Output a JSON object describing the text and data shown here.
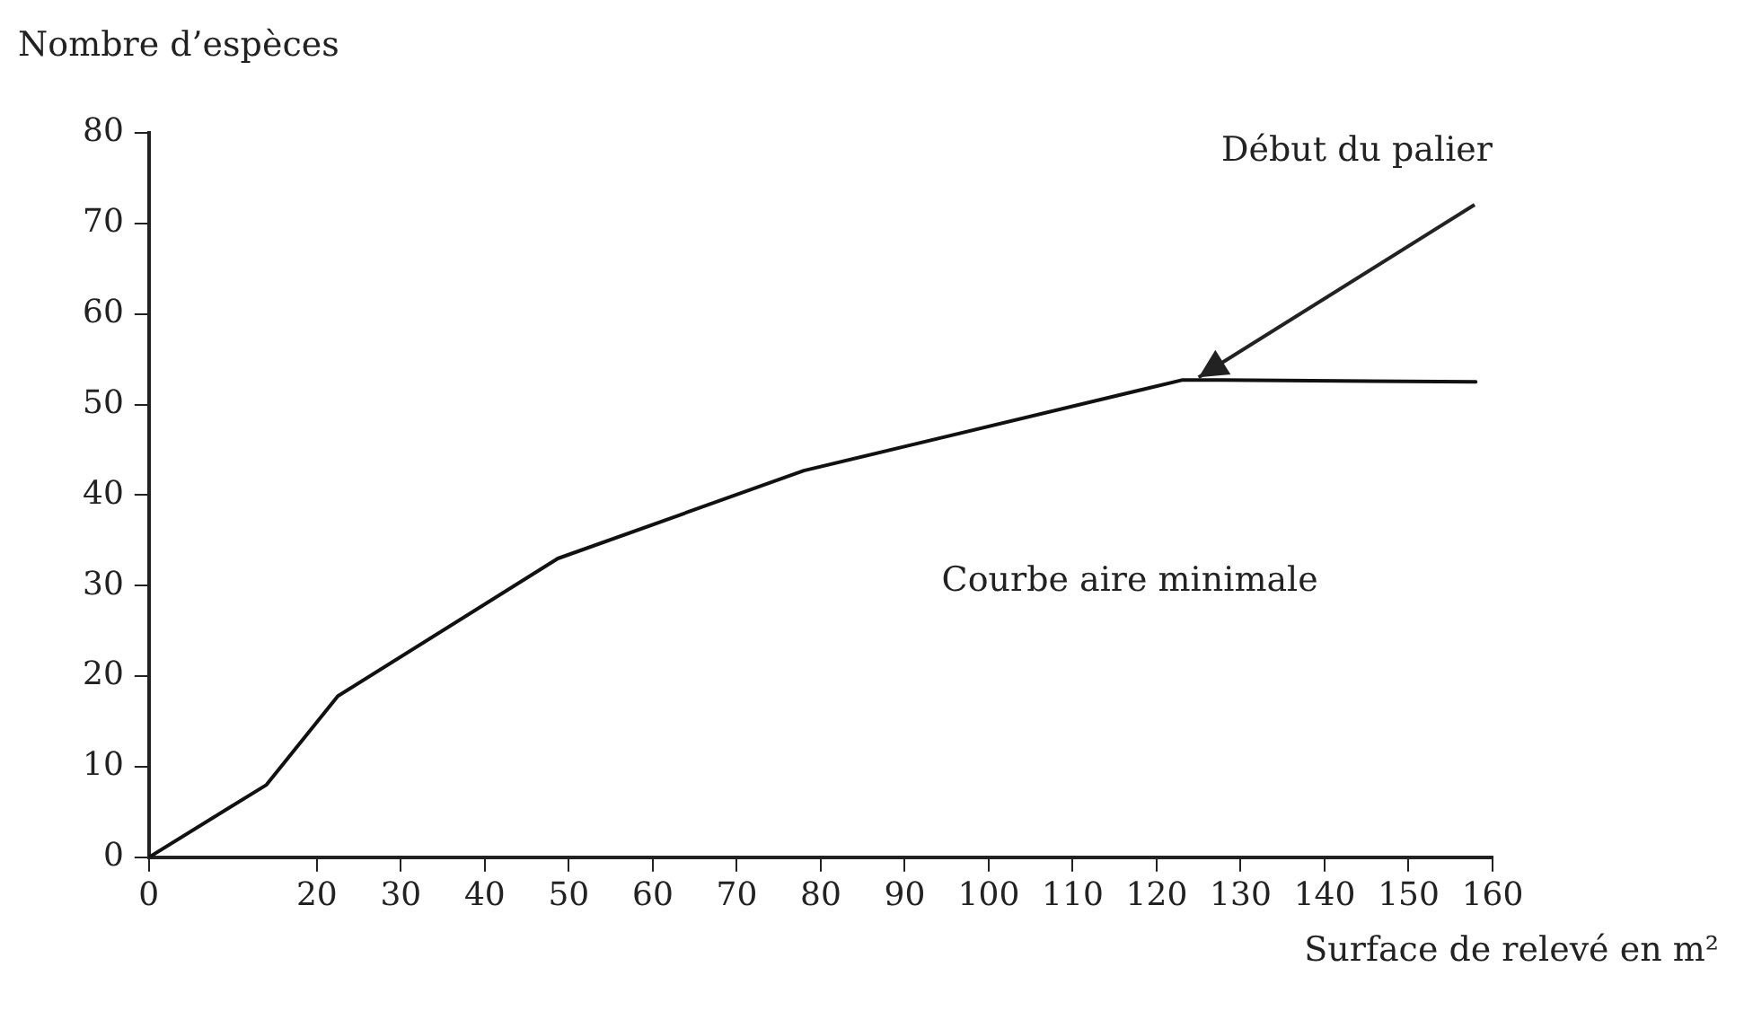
{
  "chart_data": {
    "type": "line",
    "xlabel": "Surface de relevé en m²",
    "ylabel": "Nombre d’espèces",
    "x": [
      0,
      14,
      22.5,
      48.7,
      78,
      123,
      128,
      158
    ],
    "series": [
      {
        "color": "#111111",
        "values": [
          0,
          8,
          17.8,
          33,
          42.7,
          52.7,
          52.7,
          52.5
        ]
      }
    ],
    "xlim": [
      0,
      160
    ],
    "xticks": [
      0,
      20,
      30,
      40,
      50,
      60,
      70,
      80,
      90,
      100,
      110,
      120,
      130,
      140,
      150,
      160
    ],
    "ylim": [
      0,
      80
    ],
    "yticks": [
      0,
      10,
      20,
      30,
      40,
      50,
      60,
      70,
      80
    ],
    "annotations": [
      {
        "text": "Début du palier",
        "x": 125,
        "y": 53
      },
      "Courbe aire minimale"
    ],
    "grid": false,
    "legend": false,
    "marker": "none",
    "line_style": "solid"
  }
}
